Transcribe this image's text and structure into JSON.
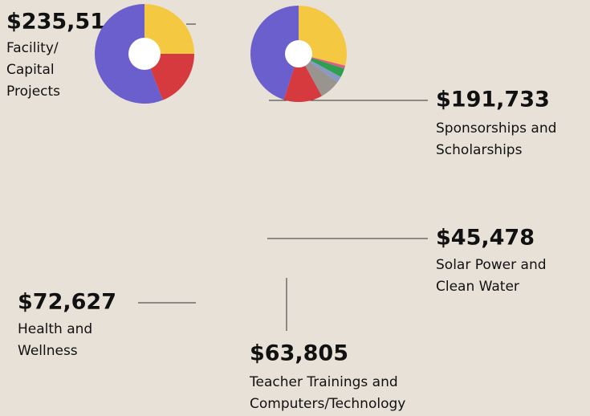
{
  "chart_data": [
    {
      "type": "pie",
      "values": [
        25,
        19,
        56
      ],
      "colors": [
        "#f5c842",
        "#d63a3f",
        "#6a5fcc"
      ]
    },
    {
      "type": "pie",
      "values": [
        29,
        1,
        3,
        2,
        7,
        13,
        45
      ],
      "colors": [
        "#f5c842",
        "#e05a8a",
        "#2e9e4f",
        "#8899c8",
        "#9a9490",
        "#d63a3f",
        "#6a5fcc"
      ]
    }
  ],
  "callouts": [
    {
      "amount": "$235,51",
      "label_lines": [
        "Facility/",
        "Capital",
        "Projects"
      ]
    },
    {
      "amount": "$191,733",
      "label_lines": [
        "Sponsorships and",
        "Scholarships"
      ]
    },
    {
      "amount": "$45,478",
      "label_lines": [
        "Solar Power and",
        "Clean Water"
      ]
    },
    {
      "amount": "$72,627",
      "label_lines": [
        "Health and",
        "Wellness"
      ]
    },
    {
      "amount": "$63,805",
      "label_lines": [
        "Teacher Trainings and",
        "Computers/Technology"
      ]
    }
  ]
}
